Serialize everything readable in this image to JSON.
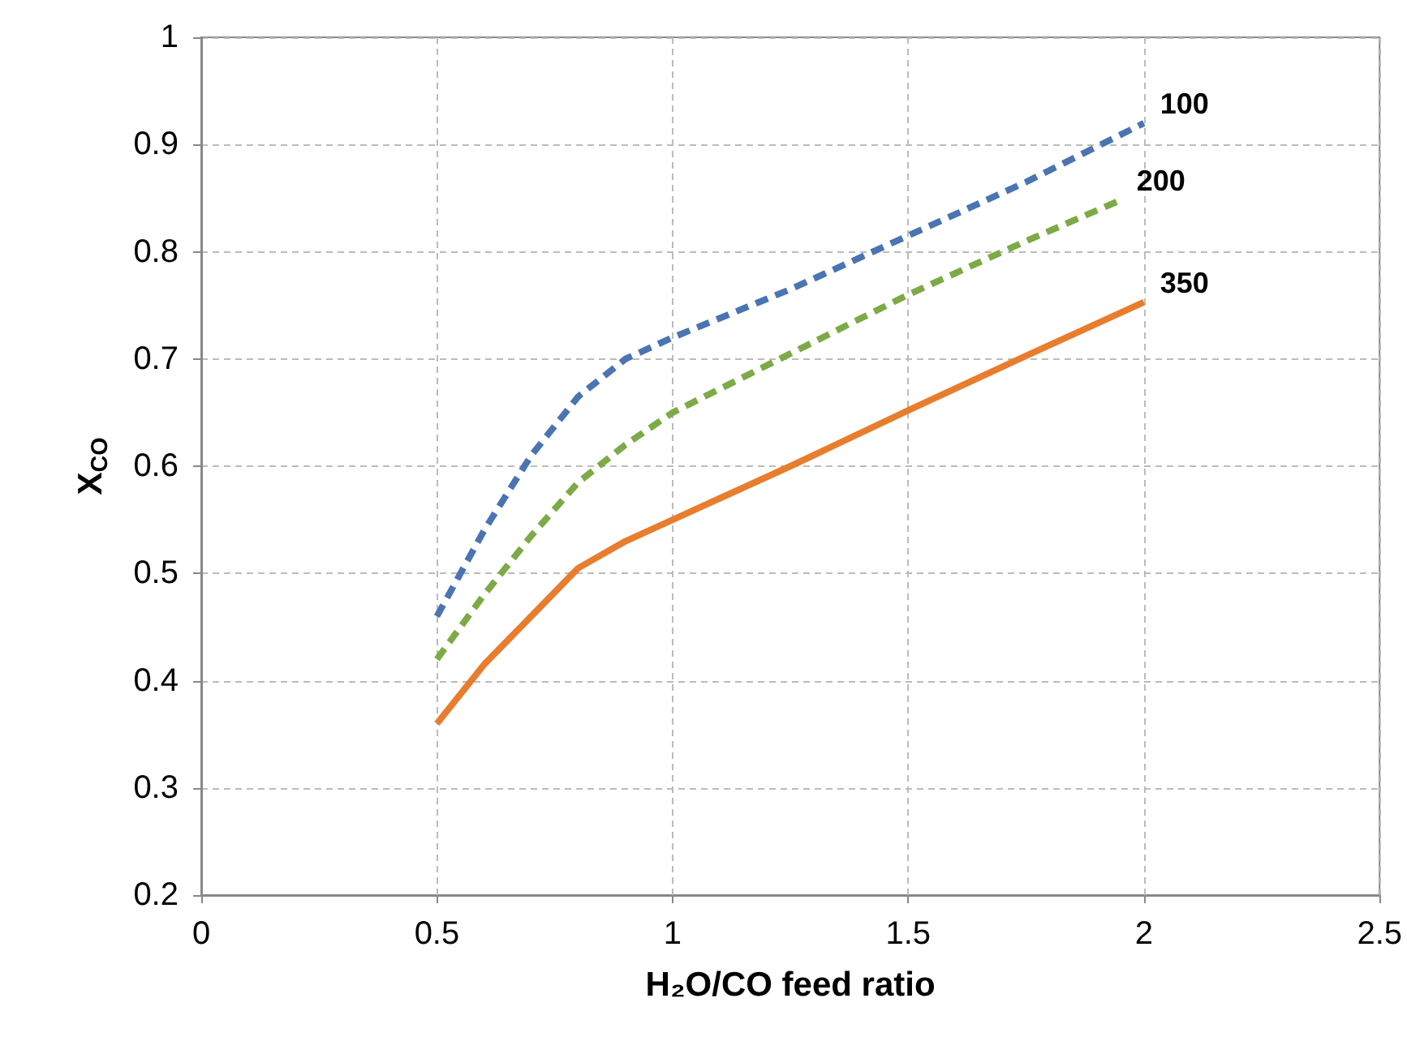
{
  "chart_data": {
    "type": "line",
    "xlabel": "H₂O/CO feed ratio",
    "ylabel": "X$_{CO}$",
    "xlim": [
      0,
      2.5
    ],
    "xticks": [
      0,
      0.5,
      1,
      1.5,
      2,
      2.5
    ],
    "ylim": [
      0.2,
      1
    ],
    "yticks": [
      0.2,
      0.3,
      0.4,
      0.5,
      0.6,
      0.7,
      0.8,
      0.9,
      1
    ],
    "grid": true,
    "legend": false,
    "marker": "none",
    "series": [
      {
        "name": "100",
        "color": "#4a74b2",
        "line_style": "dashed",
        "x": [
          0.5,
          0.6,
          0.7,
          0.8,
          0.9,
          1,
          1.25,
          1.5,
          1.75,
          2
        ],
        "values": [
          0.46,
          0.54,
          0.61,
          0.665,
          0.7,
          0.72,
          0.765,
          0.815,
          0.865,
          0.92
        ]
      },
      {
        "name": "200",
        "color": "#7daa46",
        "line_style": "dashed",
        "x": [
          0.5,
          0.6,
          0.7,
          0.8,
          0.9,
          1,
          1.25,
          1.5,
          1.75,
          1.95
        ],
        "values": [
          0.42,
          0.48,
          0.535,
          0.585,
          0.62,
          0.65,
          0.705,
          0.76,
          0.81,
          0.848
        ]
      },
      {
        "name": "350",
        "color": "#e87d2e",
        "line_style": "solid",
        "x": [
          0.5,
          0.6,
          0.7,
          0.8,
          0.9,
          1,
          1.25,
          1.5,
          1.75,
          2
        ],
        "values": [
          0.36,
          0.415,
          0.46,
          0.505,
          0.53,
          0.55,
          0.6,
          0.652,
          0.703,
          0.753
        ]
      }
    ]
  }
}
